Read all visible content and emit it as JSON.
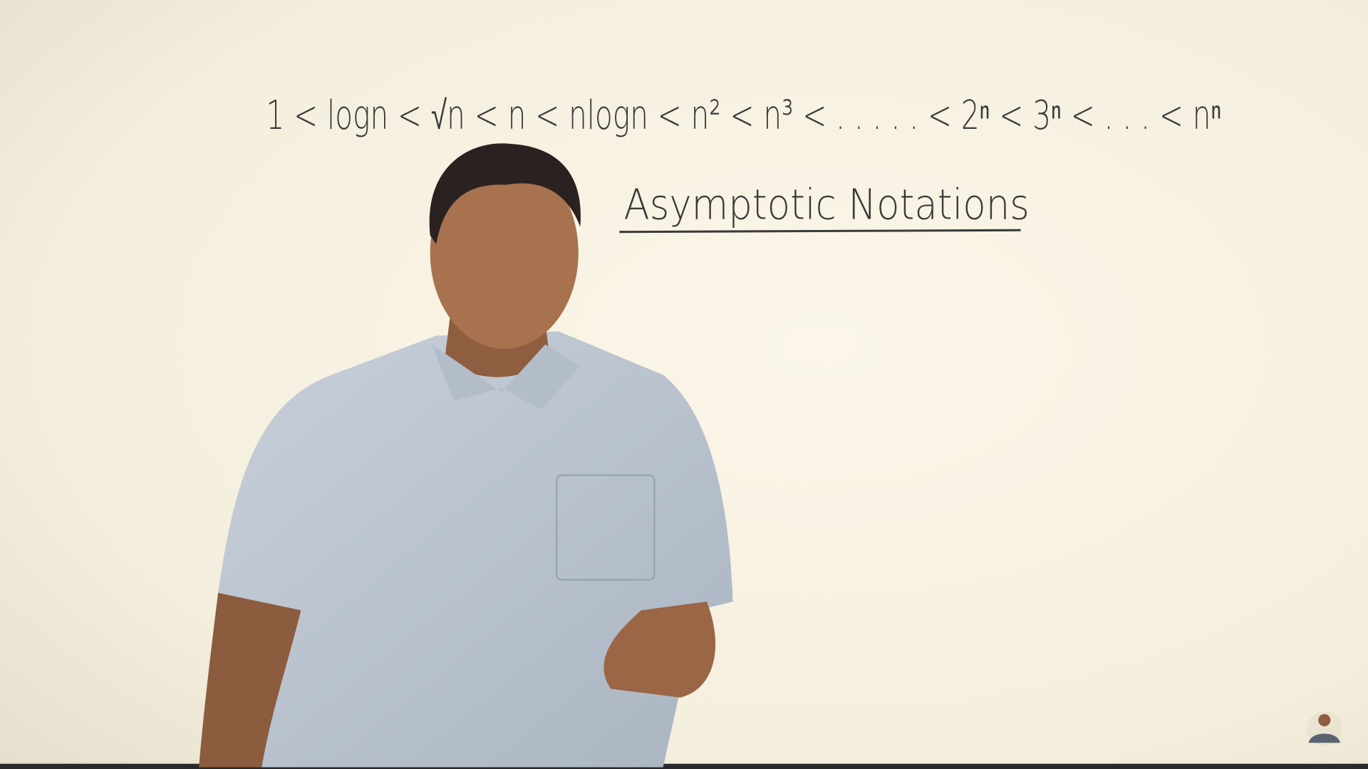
{
  "board": {
    "formula": "1 < logn < √n < n < nlogn < n² < n³ < . . . . . < 2ⁿ < 3ⁿ < . . . < nⁿ",
    "heading": "Asymptotic Notations"
  }
}
